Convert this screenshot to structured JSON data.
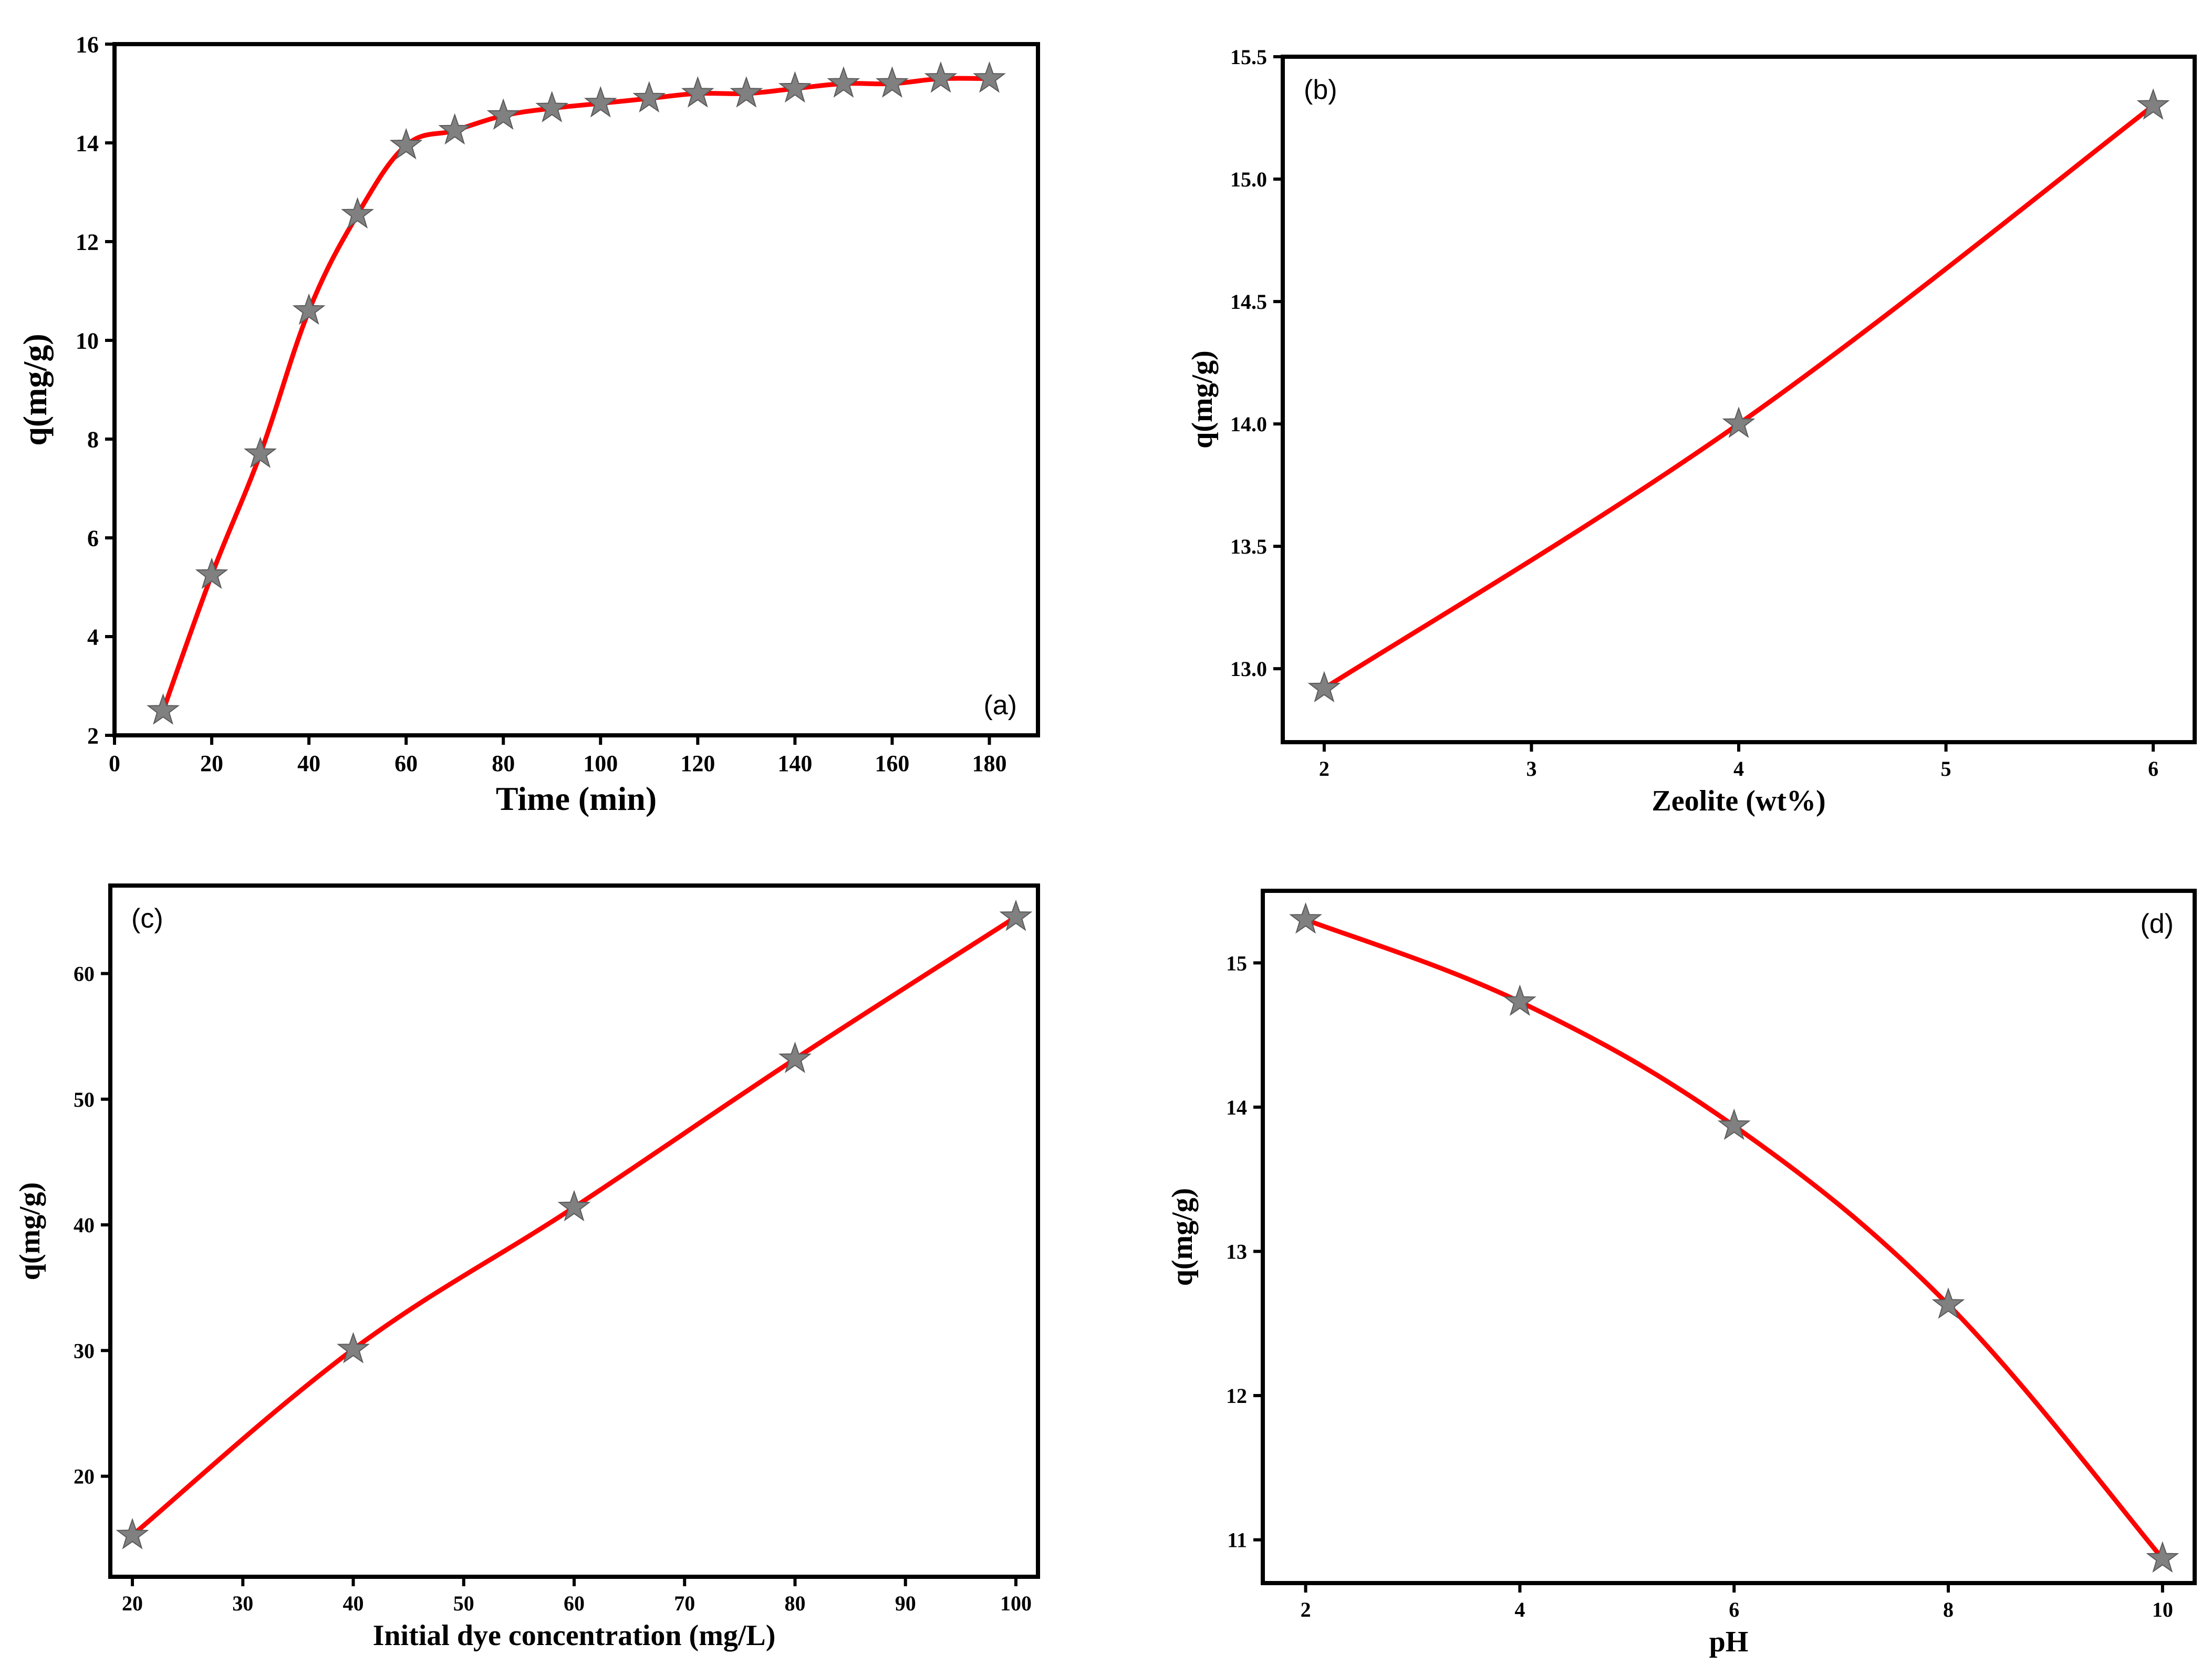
{
  "colors": {
    "line": "#ff0000",
    "marker": "#808080",
    "axis": "#000000"
  },
  "chart_data": [
    {
      "id": "a",
      "type": "line",
      "panel_label": "(a)",
      "label_position": "bottom-right",
      "xlabel": "Time (min)",
      "ylabel": "q(mg/g)",
      "xlim": [
        0,
        190
      ],
      "ylim": [
        2,
        16
      ],
      "xticks": [
        0,
        20,
        40,
        60,
        80,
        100,
        120,
        140,
        160,
        180
      ],
      "yticks": [
        2,
        4,
        6,
        8,
        10,
        12,
        14,
        16
      ],
      "x": [
        10,
        20,
        30,
        40,
        50,
        60,
        70,
        80,
        90,
        100,
        110,
        120,
        130,
        140,
        150,
        160,
        170,
        180
      ],
      "y": [
        2.5,
        5.25,
        7.7,
        10.6,
        12.55,
        13.95,
        14.25,
        14.55,
        14.7,
        14.8,
        14.9,
        15.0,
        15.0,
        15.1,
        15.2,
        15.2,
        15.3,
        15.3
      ]
    },
    {
      "id": "b",
      "type": "line",
      "panel_label": "(b)",
      "label_position": "top-left",
      "xlabel": "Zeolite (wt%)",
      "ylabel": "q(mg/g)",
      "xlim": [
        1.8,
        6.2
      ],
      "ylim": [
        12.7,
        15.5
      ],
      "xticks": [
        2,
        3,
        4,
        5,
        6
      ],
      "yticks": [
        13.0,
        13.5,
        14.0,
        14.5,
        15.0,
        15.5
      ],
      "x": [
        2,
        4,
        6
      ],
      "y": [
        12.92,
        14.0,
        15.3
      ]
    },
    {
      "id": "c",
      "type": "line",
      "panel_label": "(c)",
      "label_position": "top-left",
      "xlabel": "Initial dye concentration (mg/L)",
      "ylabel": "q(mg/g)",
      "xlim": [
        18,
        102
      ],
      "ylim": [
        12,
        67
      ],
      "xticks": [
        20,
        30,
        40,
        50,
        60,
        70,
        80,
        90,
        100
      ],
      "yticks": [
        20,
        30,
        40,
        50,
        60
      ],
      "x": [
        20,
        40,
        60,
        80,
        100
      ],
      "y": [
        15.3,
        30.1,
        41.4,
        53.2,
        64.5
      ]
    },
    {
      "id": "d",
      "type": "line",
      "panel_label": "(d)",
      "label_position": "top-right",
      "xlabel": "pH",
      "ylabel": "q(mg/g)",
      "xlim": [
        1.6,
        10.3
      ],
      "ylim": [
        10.7,
        15.5
      ],
      "xticks": [
        2,
        4,
        6,
        8,
        10
      ],
      "yticks": [
        11,
        12,
        13,
        14,
        15
      ],
      "x": [
        2,
        4,
        6,
        8,
        10
      ],
      "y": [
        15.3,
        14.73,
        13.87,
        12.63,
        10.87
      ]
    }
  ]
}
